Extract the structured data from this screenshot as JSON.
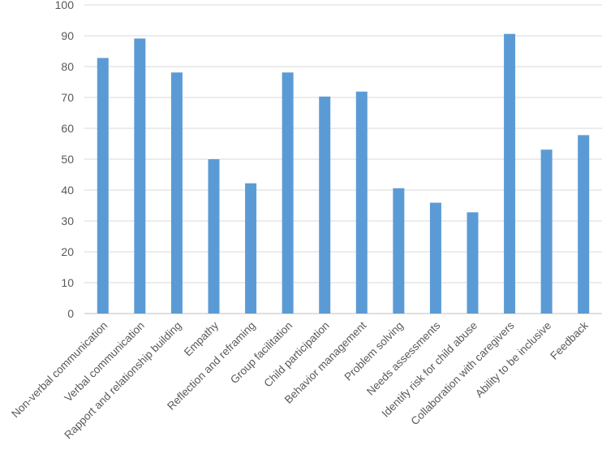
{
  "chart_data": {
    "type": "bar",
    "categories": [
      "Non-verbal communication",
      "Verbal communication",
      "Rapport and relationship building",
      "Empathy",
      "Reflection and reframing",
      "Group facilitation",
      "Child participation",
      "Behavior management",
      "Problem solving",
      "Needs assessments",
      "Identify risk for child abuse",
      "Collaboration with caregivers",
      "Ability to be inclusive",
      "Feedback"
    ],
    "values": [
      82.8,
      89.1,
      78.1,
      50.0,
      42.2,
      78.1,
      70.3,
      71.9,
      40.6,
      35.9,
      32.8,
      90.6,
      53.1,
      57.8
    ],
    "ylim": [
      0,
      100
    ],
    "yticks": [
      "0",
      "10",
      "20",
      "30",
      "40",
      "50",
      "60",
      "70",
      "80",
      "90",
      "100"
    ],
    "grid": true,
    "colors": {
      "bar": "#5b9bd5",
      "grid": "#d9d9d9",
      "axis": "#bfbfbf"
    }
  }
}
